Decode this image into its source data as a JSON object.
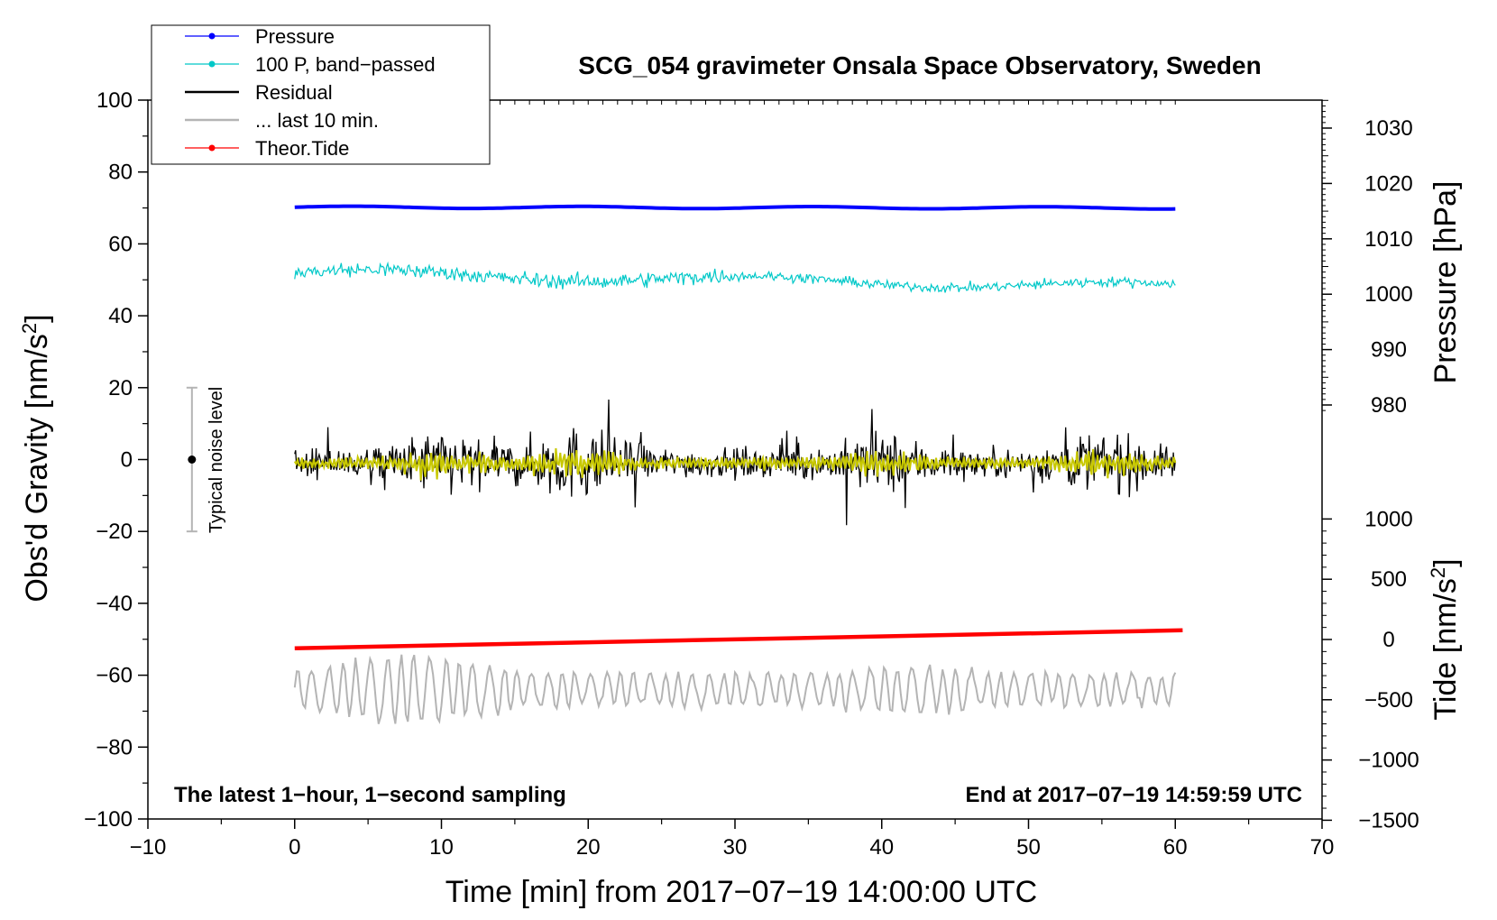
{
  "chart_data": {
    "type": "line",
    "title": "SCG_054 gravimeter Onsala Space Observatory, Sweden",
    "xlabel": "Time [min] from 2017−07−19 14:00:00 UTC",
    "xlim": [
      -10,
      70
    ],
    "xticks": [
      -10,
      0,
      10,
      20,
      30,
      40,
      50,
      60,
      70
    ],
    "xtick_labels": [
      "−10",
      "0",
      "10",
      "20",
      "30",
      "40",
      "50",
      "60",
      "70"
    ],
    "left_axis": {
      "label": "Obs'd Gravity [nm/s²]",
      "ylim": [
        -100,
        100
      ],
      "ticks": [
        -100,
        -80,
        -60,
        -40,
        -20,
        0,
        20,
        40,
        60,
        80,
        100
      ],
      "tick_labels": [
        "−100",
        "−80",
        "−60",
        "−40",
        "−20",
        "0",
        "20",
        "40",
        "60",
        "80",
        "100"
      ]
    },
    "right_pressure_axis": {
      "label": "Pressure [hPa]",
      "ticks": [
        980,
        990,
        1000,
        1010,
        1020,
        1030
      ],
      "tick_labels": [
        "980",
        "990",
        "1000",
        "1010",
        "1020",
        "1030"
      ]
    },
    "right_tide_axis": {
      "label": "Tide [nm/s²]",
      "ticks": [
        -1500,
        -1000,
        -500,
        0,
        500,
        1000
      ],
      "tick_labels": [
        "−1500",
        "−1000",
        "−500",
        "0",
        "500",
        "1000"
      ]
    },
    "legend": [
      {
        "label": "Pressure",
        "color": "#0000ff",
        "marker": true
      },
      {
        "label": "100 P, band−passed",
        "color": "#00c8c8",
        "marker": true
      },
      {
        "label": "Residual",
        "color": "#000000",
        "marker": false
      },
      {
        "label": "... last 10 min.",
        "color": "#b4b4b4",
        "marker": false
      },
      {
        "label": "Theor.Tide",
        "color": "#ff0000",
        "marker": true
      }
    ],
    "series": [
      {
        "name": "Pressure",
        "color": "#0000ff",
        "x_range": [
          0,
          60
        ],
        "y_start": 70.2,
        "y_end": 70.0,
        "noise_amplitude": 0.3
      },
      {
        "name": "100 P, band−passed",
        "color": "#00c8c8",
        "x_range": [
          0,
          60
        ],
        "y_start": 52,
        "y_end": 48,
        "noise_amplitude": 2.5
      },
      {
        "name": "Residual",
        "color": "#000000",
        "x_range": [
          0,
          60
        ],
        "y_center": -1,
        "noise_amplitude": 8,
        "max": 20,
        "min": -20
      },
      {
        "name": "Residual (smoothed)",
        "color": "#c8c800",
        "x_range": [
          0,
          60
        ],
        "y_center": -1,
        "noise_amplitude": 3
      },
      {
        "name": "... last 10 min.",
        "color": "#b4b4b4",
        "x_range": [
          0,
          60
        ],
        "y_center": -64,
        "noise_amplitude": 8,
        "max": -54,
        "min": -74
      },
      {
        "name": "Theor.Tide",
        "color": "#ff0000",
        "x_range": [
          0,
          60.5
        ],
        "y_start": -52.5,
        "y_end": -47.5
      }
    ],
    "noise_indicator": {
      "label": "Typical noise level",
      "x": -7,
      "y_center": 0,
      "y_min": -20,
      "y_max": 20
    },
    "annotations": {
      "left": "The latest 1−hour, 1−second sampling",
      "right": "End at 2017−07−19 14:59:59 UTC"
    }
  }
}
